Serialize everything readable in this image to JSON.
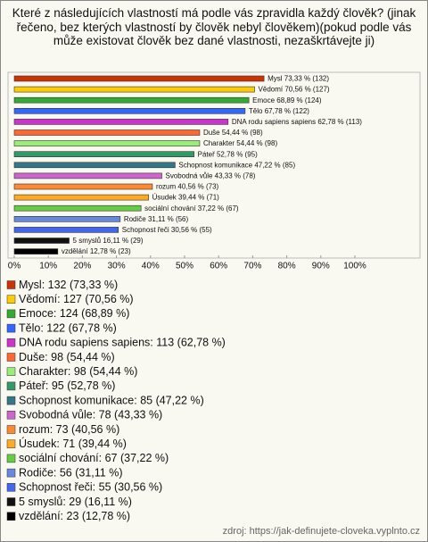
{
  "chart_data": {
    "type": "bar",
    "title": "Které z následujících vlastností má podle vás zpravidla každý člověk? (jinak řečeno, bez kterých vlastností by člověk nebyl člověkem)(pokud podle vás může existovat člověk bez dané vlastnosti, nezaškrtávejte ji)",
    "categories": [
      "Mysl",
      "Vědomí",
      "Emoce",
      "Tělo",
      "DNA rodu sapiens sapiens",
      "Duše",
      "Charakter",
      "Páteř",
      "Schopnost komunikace",
      "Svobodná vůle",
      "rozum",
      "Úsudek",
      "sociální chování",
      "Rodiče",
      "Schopnost řeči",
      "5 smyslů",
      "vzdělání"
    ],
    "values": [
      73.33,
      70.56,
      68.89,
      67.78,
      62.78,
      54.44,
      54.44,
      52.78,
      47.22,
      43.33,
      40.56,
      39.44,
      37.22,
      31.11,
      30.56,
      16.11,
      12.78
    ],
    "value_labels": [
      "Mysl 73,33 % (132)",
      "Vědomí 70,56 % (127)",
      "Emoce 68,89 % (124)",
      "Tělo 67,78 % (122)",
      "DNA rodu sapiens sapiens 62,78 % (113)",
      "Duše 54,44 % (98)",
      "Charakter 54,44 % (98)",
      "Páteř 52,78 % (95)",
      "Schopnost komunikace 47,22 % (85)",
      "Svobodná vůle 43,33 % (78)",
      "rozum 40,56 % (73)",
      "Úsudek 39,44 % (71)",
      "sociální chování 37,22 % (67)",
      "Rodiče 31,11 % (56)",
      "Schopnost řeči 30,56 % (55)",
      "5 smyslů 16,11 % (29)",
      "vzdělání 12,78 % (23)"
    ],
    "legend_labels": [
      "Mysl: 132 (73,33 %)",
      "Vědomí: 127 (70,56 %)",
      "Emoce: 124 (68,89 %)",
      "Tělo: 122 (67,78 %)",
      "DNA rodu sapiens sapiens: 113 (62,78 %)",
      "Duše: 98 (54,44 %)",
      "Charakter: 98 (54,44 %)",
      "Páteř: 95 (52,78 %)",
      "Schopnost komunikace: 85 (47,22 %)",
      "Svobodná vůle: 78 (43,33 %)",
      "rozum: 73 (40,56 %)",
      "Úsudek: 71 (39,44 %)",
      "sociální chování: 67 (37,22 %)",
      "Rodiče: 56 (31,11 %)",
      "Schopnost řeči: 55 (30,56 %)",
      "5 smyslů: 29 (16,11 %)",
      "vzdělání: 23 (12,78 %)"
    ],
    "colors": [
      "#cc3300",
      "#ffcc00",
      "#33aa33",
      "#3366ff",
      "#cc33cc",
      "#ff6633",
      "#99ee77",
      "#339966",
      "#337788",
      "#cc66cc",
      "#ff8833",
      "#ffaa22",
      "#66cc44",
      "#6688dd",
      "#4466ee",
      "#111111",
      "#000000"
    ],
    "xlim": [
      0,
      100
    ],
    "xticks": [
      {
        "value": 0,
        "label": "0%"
      },
      {
        "value": 10,
        "label": "10%"
      },
      {
        "value": 20,
        "label": "20%"
      },
      {
        "value": 30,
        "label": "30%"
      },
      {
        "value": 40,
        "label": "40%"
      },
      {
        "value": 50,
        "label": "50%"
      },
      {
        "value": 60,
        "label": "60%"
      },
      {
        "value": 70,
        "label": "70%"
      },
      {
        "value": 80,
        "label": "80%"
      },
      {
        "value": 90,
        "label": "90%"
      },
      {
        "value": 100,
        "label": "100%"
      }
    ],
    "source": "zdroj: https://jak-definujete-cloveka.vyplnto.cz"
  }
}
